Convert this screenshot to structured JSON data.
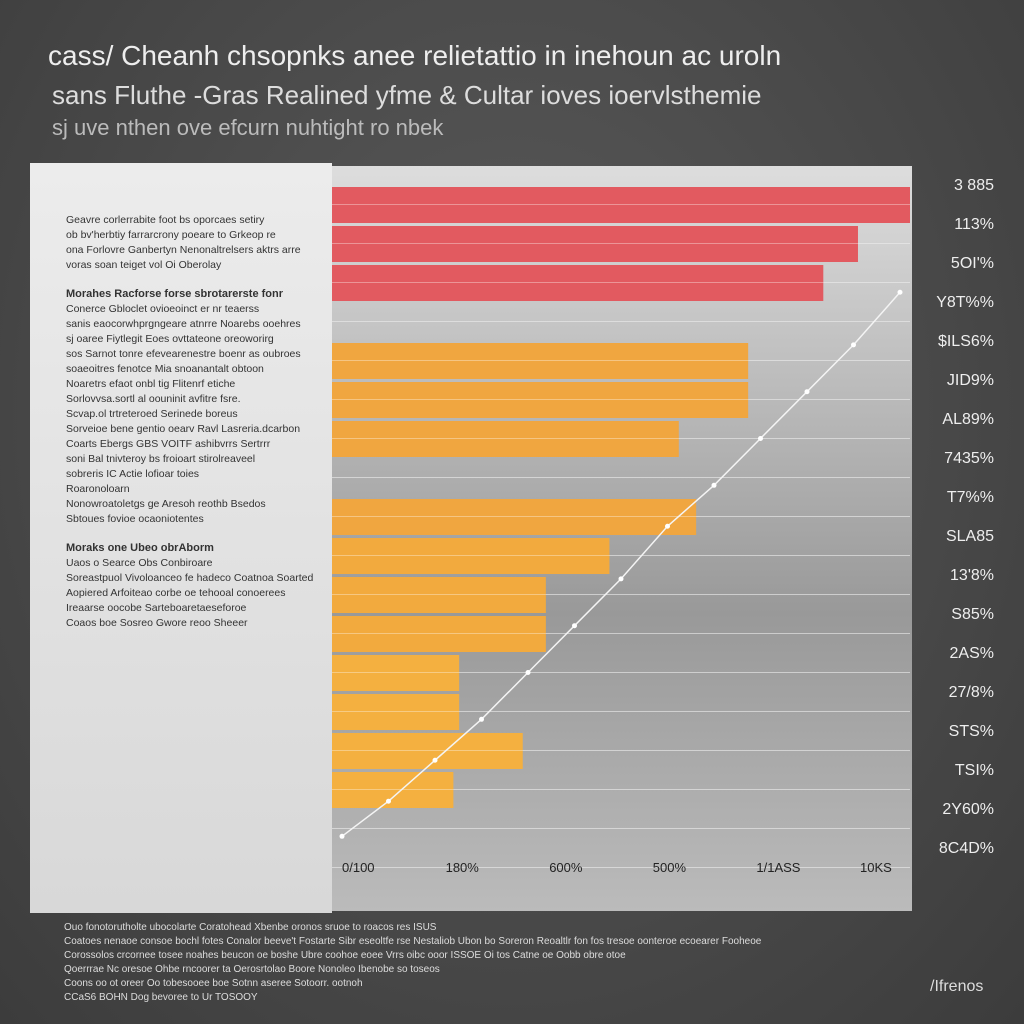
{
  "header": {
    "title": "cass/ Cheanh chsopnks anee relietattio in inehoun ac uroln",
    "subtitle": "sans Fluthe -Gras Realined yfme &  Cultar ioves ioervlsthemie",
    "caption": "sj uve nthen ove efcurn nuhtight ro nbek"
  },
  "panel": {
    "lines": [
      {
        "t": "Geavre corlerrabite foot bs oporcaes setiry",
        "h": false
      },
      {
        "t": "ob bv'herbtiy farrarcrony poeare to Grkeop re",
        "h": false
      },
      {
        "t": "ona Forlovre Ganbertyn Nenonaltrelsers aktrs arre",
        "h": false
      },
      {
        "t": "voras soan teiget vol Oi Oberolay",
        "h": false
      },
      {
        "t": "Morahes Racforse forse sbrotarerste fonr",
        "h": true
      },
      {
        "t": "Conerce Gbloclet ovioeoinct er nr teaerss",
        "h": false
      },
      {
        "t": "sanis eaocorwhprgngeare atnrre Noarebs ooehres",
        "h": false
      },
      {
        "t": "sj oaree Fiytlegit Eoes ovttateone oreoworirg",
        "h": false
      },
      {
        "t": "sos Sarnot tonre efevearenestre boenr as oubroes",
        "h": false
      },
      {
        "t": "soaeoitres fenotce Mia snoanantalt obtoon",
        "h": false
      },
      {
        "t": "Noaretrs efaot onbl tig Flitenrf etiche",
        "h": false
      },
      {
        "t": "Sorlovvsa.sortl al oouninit avfitre fsre.",
        "h": false
      },
      {
        "t": "Scvap.ol trtreteroed Serinede boreus",
        "h": false
      },
      {
        "t": "Sorveioe bene gentio oearv Ravl Lasreria.dcarbon",
        "h": false
      },
      {
        "t": "Coarts Ebergs GBS VOITF ashibvrrs Sertrrr",
        "h": false
      },
      {
        "t": "soni Bal tnivteroy bs froioart stirolreaveel",
        "h": false
      },
      {
        "t": "sobreris IC Actie lofioar toies",
        "h": false
      },
      {
        "t": "Roaronoloarn",
        "h": false
      },
      {
        "t": "Nonowroatoletgs ge Aresoh reothb Bsedos",
        "h": false
      },
      {
        "t": "Sbtoues fovioe ocaoniotentes",
        "h": false
      },
      {
        "t": "Moraks one Ubeo obrAborm",
        "h": true
      },
      {
        "t": "Uaos o Searce Obs Conbiroare",
        "h": false
      },
      {
        "t": "Soreastpuol Vivoloanceo fe hadeco Coatnoa Soarted",
        "h": false
      },
      {
        "t": "Aopiered Arfoiteao corbe oe tehooal conoerees",
        "h": false
      },
      {
        "t": "Ireaarse oocobe Sarteboaretaeseforoe",
        "h": false
      },
      {
        "t": "Coaos boe Sosreo Gwore reoo Sheeer",
        "h": false
      }
    ]
  },
  "chart_data": {
    "type": "bar",
    "orientation": "horizontal",
    "categories": [
      "3 885",
      "113%",
      "5OI'%",
      "Y8T%%",
      "$ILS6%",
      "JID9%",
      "AL89%",
      "7435%",
      "T7%%",
      "SLA85",
      "13'8%",
      "S85%",
      "2AS%",
      "27/8%",
      "STS%",
      "TSI%",
      "2Y60%",
      "8C4D%"
    ],
    "values": [
      100,
      91,
      85,
      0,
      72,
      72,
      60,
      0,
      63,
      48,
      37,
      37,
      22,
      22,
      33,
      21,
      0,
      0
    ],
    "colors": [
      "#e25a60",
      "#e25a60",
      "#e25a60",
      "#f0a640",
      "#f0a640",
      "#f0a640",
      "#f0a640",
      "#f0a640",
      "#f0a640",
      "#f2aa3e",
      "#f2aa3e",
      "#f2aa3e",
      "#f4b040",
      "#f4b040",
      "#f4b040",
      "#f4b040",
      "#f4b040",
      "#f4b040"
    ],
    "xticks": [
      "0/100",
      "180%",
      "600%",
      "500%",
      "1/1ASS",
      "10KS"
    ],
    "xlim": [
      0,
      100
    ],
    "trend": [
      2,
      8,
      15,
      22,
      30,
      38,
      46,
      55,
      62,
      70,
      78,
      86,
      95
    ],
    "grid": true
  },
  "footer": {
    "lines": [
      "Ouo fonotorutholte ubocolarte Coratohead Xbenbe oronos sruoe to roacos res ISUS",
      "Coatoes nenaoe consoe bochl fotes Conalor beeve't Fostarte Sibr eseoltfe rse Nestaliob Ubon bo Soreron Reoaltlr fon fos tresoe oonteroe ecoearer Fooheoe",
      "Corossolos crcornee tosee noahes beucon oe boshe Ubre coohoe eoee Vrrs oibc ooor ISSOE Oi tos Catne oe Oobb obre otoe",
      "Qoerrrae Nc oresoe Ohbe rncoorer ta Oerosrtolao Boore Nonoleo Ibenobe so toseos",
      "Coons oo ot oreer Oo tobesooee boe Sotnn aseree Sotoorr. ootnoh",
      "CCaS6 BOHN Dog bevoree to Ur TOSOOY"
    ],
    "logo": "/Ifrenos"
  }
}
